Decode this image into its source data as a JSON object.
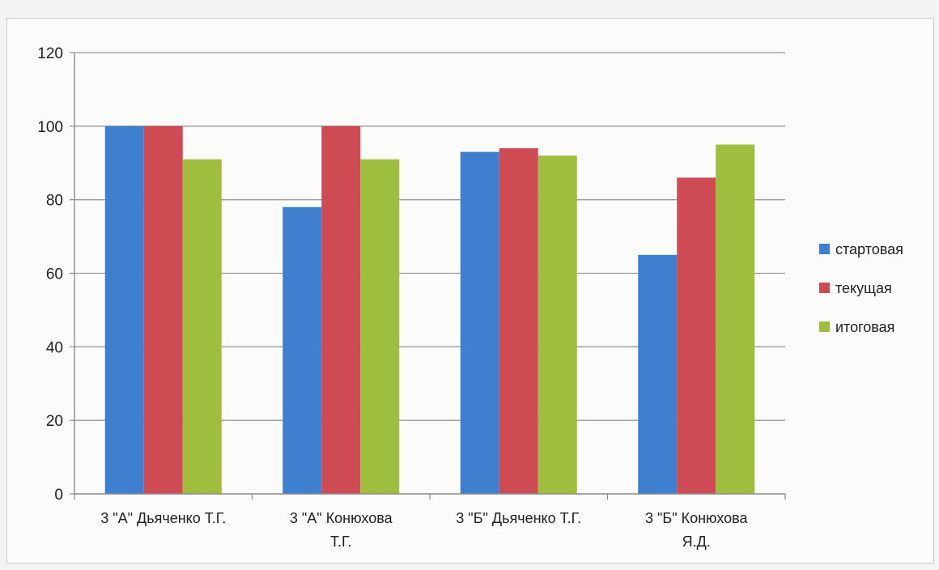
{
  "chart_data": {
    "type": "bar",
    "categories": [
      "3 \"А\" Дьяченко Т.Г.",
      "3 \"А\" Конюхова Т.Г.",
      "3 \"Б\" Дьяченко Т.Г.",
      "3 \"Б\" Конюхова Я.Д."
    ],
    "category_lines": [
      [
        "3 \"А\" Дьяченко Т.Г."
      ],
      [
        "3 \"А\" Конюхова",
        "Т.Г."
      ],
      [
        "3 \"Б\" Дьяченко Т.Г."
      ],
      [
        "3 \"Б\" Конюхова",
        "Я.Д."
      ]
    ],
    "series": [
      {
        "name": "стартовая",
        "values": [
          100,
          78,
          93,
          65
        ],
        "color": "#3f7fcf"
      },
      {
        "name": "текущая",
        "values": [
          100,
          100,
          94,
          86
        ],
        "color": "#cf4b54"
      },
      {
        "name": "итоговая",
        "values": [
          91,
          91,
          92,
          95
        ],
        "color": "#9fbe3e"
      }
    ],
    "ylim": [
      0,
      120
    ],
    "yticks": [
      0,
      20,
      40,
      60,
      80,
      100,
      120
    ],
    "grid": true,
    "legend": "right",
    "title": "",
    "xlabel": "",
    "ylabel": ""
  }
}
